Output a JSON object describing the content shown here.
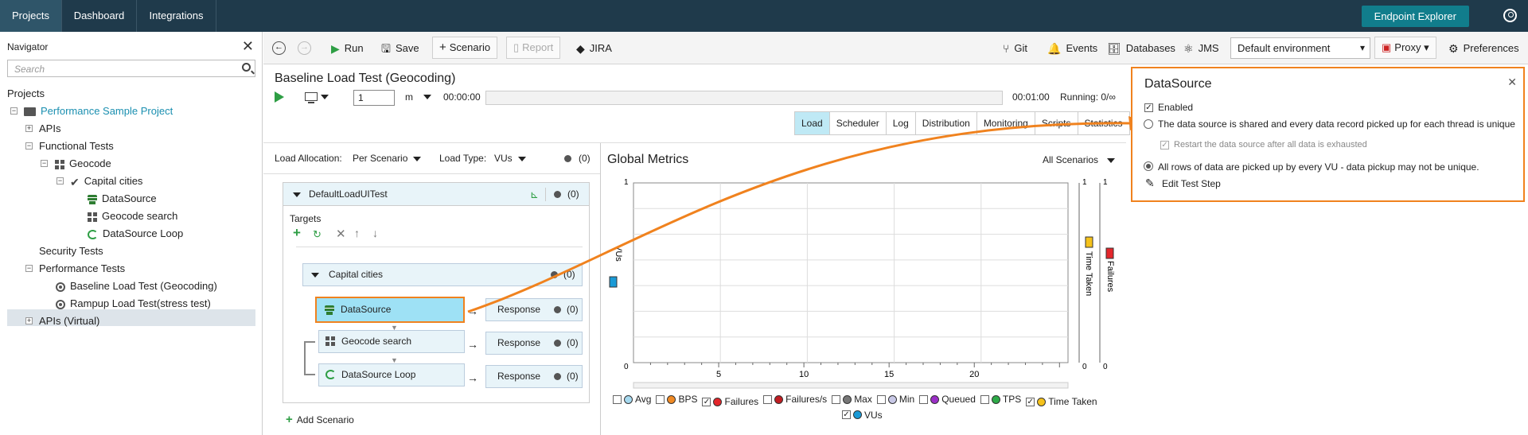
{
  "topbar": {
    "tabs": [
      "Projects",
      "Dashboard",
      "Integrations"
    ],
    "endpoint_explorer": "Endpoint Explorer"
  },
  "navigator": {
    "title": "Navigator",
    "search_placeholder": "Search",
    "projects_label": "Projects",
    "project": "Performance Sample Project",
    "items": {
      "apis": "APIs",
      "functional_tests": "Functional Tests",
      "geocode": "Geocode",
      "capital_cities": "Capital cities",
      "datasource": "DataSource",
      "geocode_search": "Geocode search",
      "datasource_loop": "DataSource Loop",
      "security_tests": "Security Tests",
      "performance_tests": "Performance Tests",
      "baseline": "Baseline Load Test (Geocoding)",
      "rampup": "Rampup Load Test(stress test)",
      "apis_virtual": "APIs (Virtual)"
    }
  },
  "toolbar": {
    "run": "Run",
    "save": "Save",
    "scenario": "Scenario",
    "report": "Report",
    "jira": "JIRA",
    "git": "Git",
    "events": "Events",
    "databases": "Databases",
    "jms": "JMS",
    "environment": "Default environment",
    "proxy": "Proxy",
    "preferences": "Preferences"
  },
  "test": {
    "title": "Baseline Load Test (Geocoding)",
    "vu_value": "1",
    "unit": "m",
    "elapsed": "00:00:00",
    "total": "00:01:00",
    "running": "Running: 0/∞",
    "tabs": [
      "Load",
      "Scheduler",
      "Log",
      "Distribution",
      "Monitoring",
      "Scripts",
      "Statistics"
    ],
    "active_tab": "Load"
  },
  "load": {
    "allocation_label": "Load Allocation:",
    "allocation_value": "Per Scenario",
    "type_label": "Load Type:",
    "type_value": "VUs",
    "count": "(0)",
    "scenario_name": "DefaultLoadUITest",
    "targets_label": "Targets",
    "group": "Capital cities",
    "steps": [
      "DataSource",
      "Geocode search",
      "DataSource Loop"
    ],
    "response": "Response",
    "add_scenario": "Add Scenario"
  },
  "metrics": {
    "title": "Global Metrics",
    "scenario_filter": "All Scenarios",
    "legend": [
      {
        "label": "Avg",
        "checked": false,
        "color": "#a6d9ef"
      },
      {
        "label": "BPS",
        "checked": false,
        "color": "#f08a24"
      },
      {
        "label": "Failures",
        "checked": true,
        "color": "#e3262b"
      },
      {
        "label": "Failures/s",
        "checked": false,
        "color": "#c01d22"
      },
      {
        "label": "Max",
        "checked": false,
        "color": "#777777"
      },
      {
        "label": "Min",
        "checked": false,
        "color": "#c8c8e6"
      },
      {
        "label": "Queued",
        "checked": false,
        "color": "#9b2fc7"
      },
      {
        "label": "TPS",
        "checked": false,
        "color": "#2eaa48"
      },
      {
        "label": "Time Taken",
        "checked": true,
        "color": "#f5c21b"
      },
      {
        "label": "VUs",
        "checked": true,
        "color": "#1a9ad6"
      }
    ]
  },
  "chart_data": {
    "type": "line",
    "title": "Global Metrics",
    "x_ticks": [
      "5",
      "10",
      "15",
      "20"
    ],
    "y_left_ticks": [
      "1",
      "0"
    ],
    "y_right_ticks": [
      "1",
      "0"
    ],
    "y_failures_ticks": [
      "1",
      "0"
    ],
    "axis_labels": {
      "left": "VUs",
      "right": "Time Taken",
      "far_right": "Failures"
    },
    "series": []
  },
  "datasource_panel": {
    "title": "DataSource",
    "enabled": "Enabled",
    "option1": "The data source is shared and every data record picked up for each thread is unique",
    "restart": "Restart the data source after all data is exhausted",
    "option2": "All rows of data are picked up by every VU - data pickup may not be unique.",
    "edit": "Edit Test Step"
  },
  "colors": {
    "accent": "#f0821e",
    "topbar": "#1f3a4b",
    "selected_tab": "#bfe9f5"
  }
}
